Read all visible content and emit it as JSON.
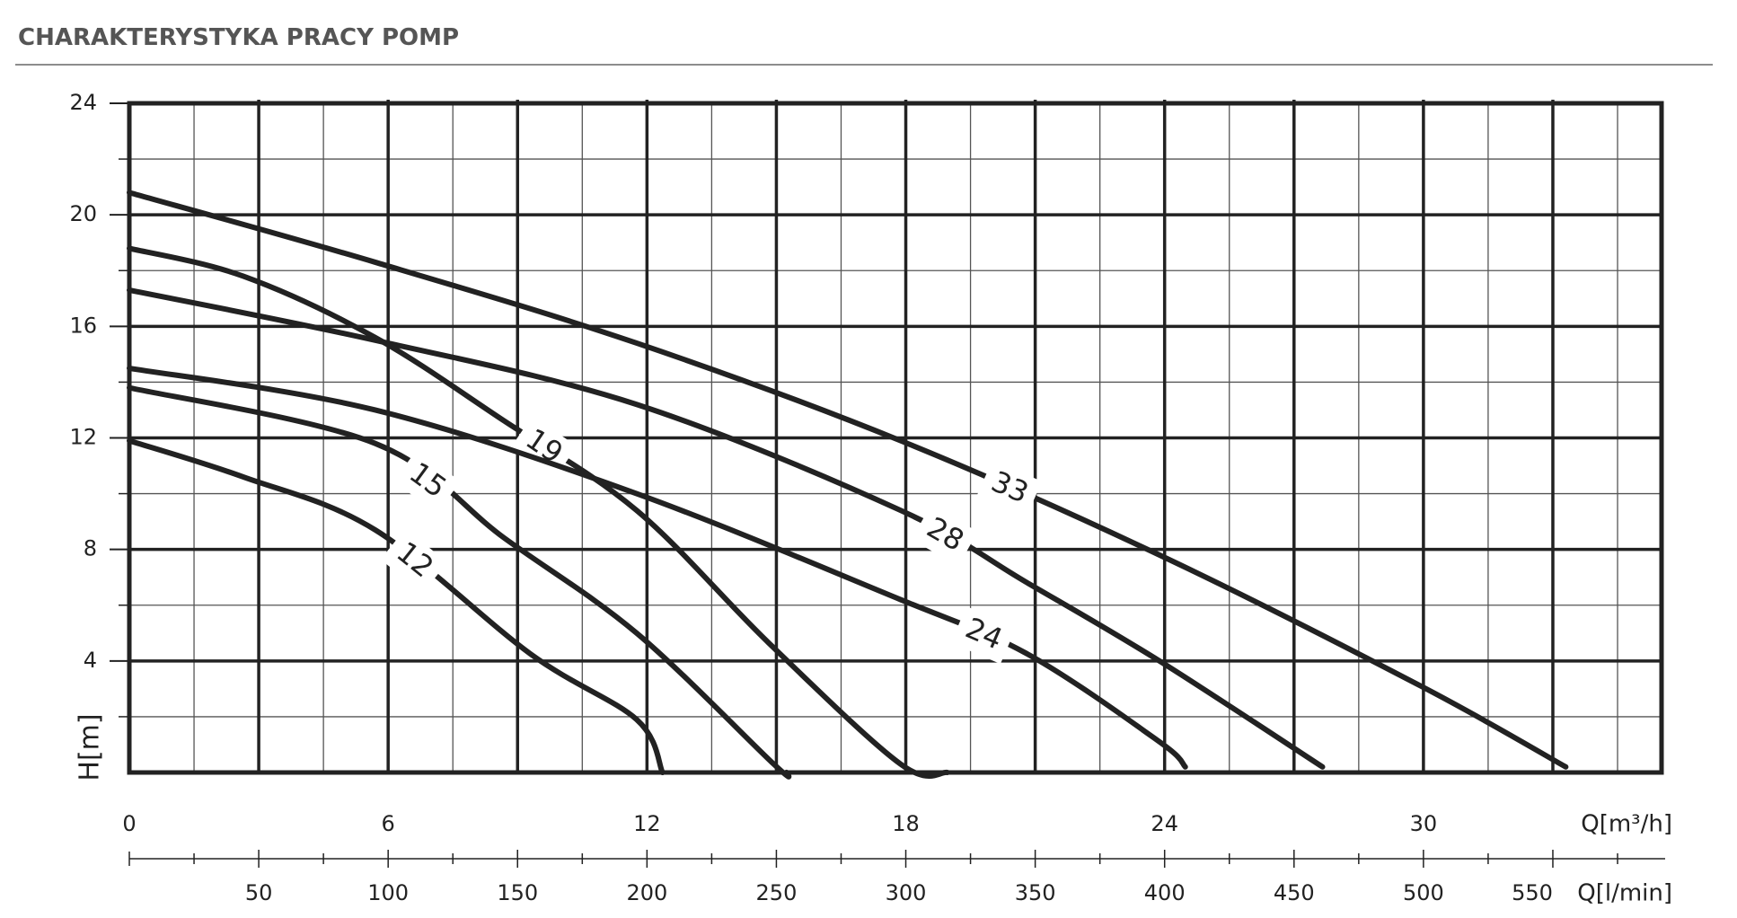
{
  "chart_data": {
    "type": "line",
    "title": "CHARAKTERYSTYKA PRACY POMP",
    "y_label": "H[m]",
    "x_label": "Q[l/min]",
    "x2_label": "Q[m³/h]",
    "xlim": [
      0,
      592
    ],
    "xticks": [
      50,
      100,
      150,
      200,
      250,
      300,
      350,
      400,
      450,
      500,
      550
    ],
    "xminor": [
      25,
      75,
      125,
      175,
      225,
      275,
      325,
      375,
      425,
      475,
      525,
      575
    ],
    "x2lim": [
      0,
      35.52
    ],
    "x2ticks": [
      0,
      6,
      12,
      18,
      24,
      30
    ],
    "ylim": [
      0,
      24
    ],
    "yticks": [
      4,
      8,
      12,
      16,
      20,
      24
    ],
    "yminor": [
      2,
      6,
      10,
      14,
      18,
      22
    ],
    "grid": true,
    "series": [
      {
        "name": "12",
        "color": "#222222",
        "x": [
          0,
          44,
          95,
          155,
          196,
          206
        ],
        "values": [
          11.9,
          10.6,
          8.7,
          4.25,
          1.9,
          0
        ]
      },
      {
        "name": "15",
        "color": "#222222",
        "x": [
          0,
          95,
          145,
          196,
          249,
          254
        ],
        "values": [
          13.8,
          11.8,
          8.4,
          5.0,
          0.3,
          0
        ]
      },
      {
        "name": "19",
        "color": "#222222",
        "x": [
          0,
          44,
          95,
          145,
          196,
          247,
          298,
          316
        ],
        "values": [
          18.8,
          17.8,
          15.6,
          12.6,
          9.4,
          4.65,
          0.3,
          0
        ]
      },
      {
        "name": "24",
        "color": "#222222",
        "x": [
          0,
          95,
          196,
          298,
          347,
          398,
          408
        ],
        "values": [
          14.5,
          13.0,
          10.0,
          6.2,
          4.25,
          1.1,
          0.2
        ]
      },
      {
        "name": "28",
        "color": "#222222",
        "x": [
          0,
          95,
          196,
          298,
          347,
          398,
          461
        ],
        "values": [
          17.3,
          15.5,
          13.2,
          9.4,
          6.8,
          4.0,
          0.2
        ]
      },
      {
        "name": "33",
        "color": "#222222",
        "x": [
          0,
          95,
          196,
          298,
          398,
          499,
          555
        ],
        "values": [
          20.8,
          18.3,
          15.4,
          11.9,
          7.8,
          3.1,
          0.2
        ]
      }
    ]
  }
}
